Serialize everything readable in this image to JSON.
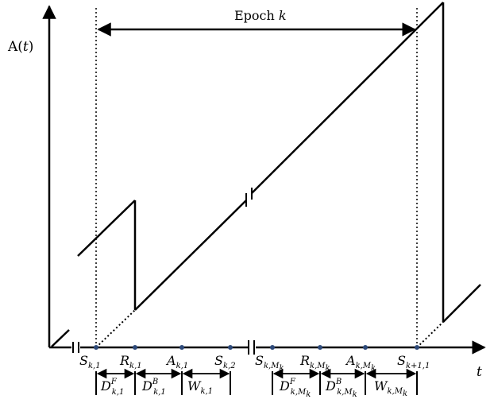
{
  "y_axis_label": {
    "prefix": "A(",
    "var": "t",
    "suffix": ")"
  },
  "x_axis_label": "t",
  "epoch_label": {
    "text": "Epoch ",
    "var": "k"
  },
  "point_labels": [
    {
      "main": "S",
      "sub": "k,1"
    },
    {
      "main": "R",
      "sub": "k,1"
    },
    {
      "main": "A",
      "sub": "k,1"
    },
    {
      "main": "S",
      "sub": "k,2"
    },
    {
      "main": "S",
      "sub": "k,M",
      "subsub": "k"
    },
    {
      "main": "R",
      "sub": "k,M",
      "subsub": "k"
    },
    {
      "main": "A",
      "sub": "k,M",
      "subsub": "k"
    },
    {
      "main": "S",
      "sub": "k+1,1"
    }
  ],
  "interval_labels": [
    {
      "main": "D",
      "sup": "F",
      "sub": "k,1"
    },
    {
      "main": "D",
      "sup": "B",
      "sub": "k,1"
    },
    {
      "main": "W",
      "sub": "k,1"
    },
    {
      "main": "D",
      "sup": "F",
      "sub": "k,M",
      "subsub": "k"
    },
    {
      "main": "D",
      "sup": "B",
      "sub": "k,M",
      "subsub": "k"
    },
    {
      "main": "W",
      "sub": "k,M",
      "subsub": "k"
    }
  ],
  "colors": {
    "line": "#000000",
    "point": "#2E4A7A"
  }
}
